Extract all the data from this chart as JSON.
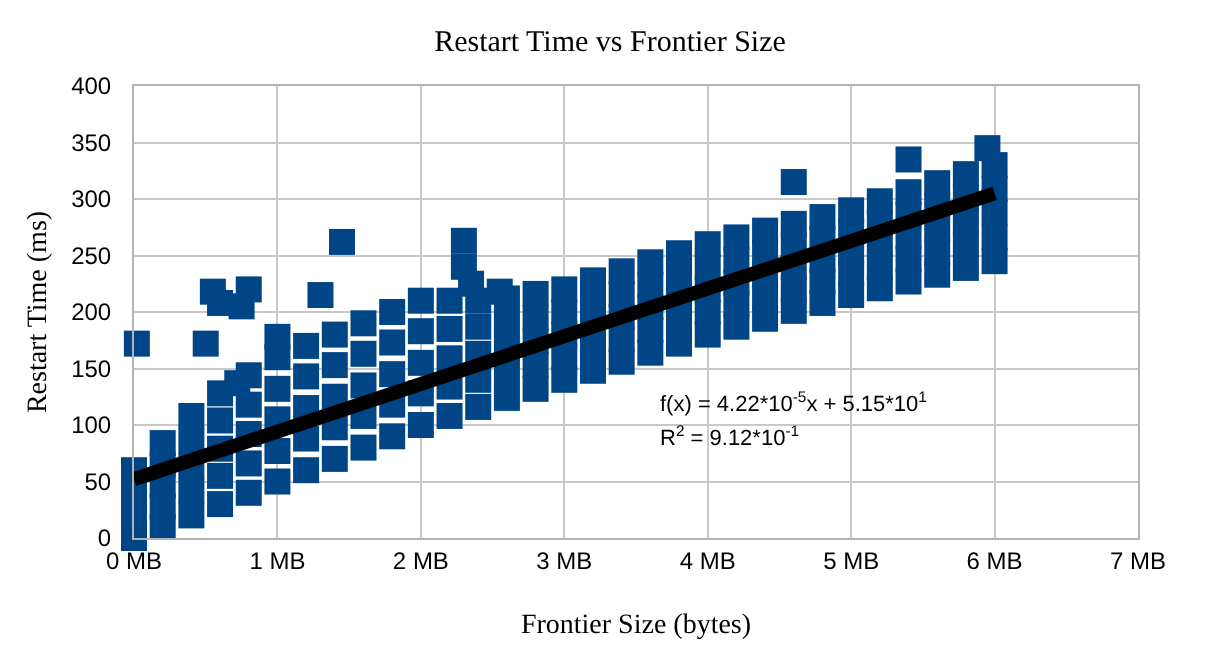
{
  "chart_data": {
    "type": "scatter",
    "title": "Restart Time vs Frontier Size",
    "xlabel": "Frontier Size (bytes)",
    "ylabel": "Restart Time (ms)",
    "xlim": [
      0,
      7
    ],
    "xticks": [
      {
        "value": 0,
        "label": "0 MB"
      },
      {
        "value": 1,
        "label": "1 MB"
      },
      {
        "value": 2,
        "label": "2 MB"
      },
      {
        "value": 3,
        "label": "3 MB"
      },
      {
        "value": 4,
        "label": "4 MB"
      },
      {
        "value": 5,
        "label": "5 MB"
      },
      {
        "value": 6,
        "label": "6 MB"
      },
      {
        "value": 7,
        "label": "7 MB"
      }
    ],
    "ylim": [
      0,
      400
    ],
    "yticks": [
      0,
      50,
      100,
      150,
      200,
      250,
      300,
      350,
      400
    ],
    "grid": true,
    "annotations": [
      "f(x) = 4.22*10$^{-5}$x + 5.15*10$^{1}$",
      "R$^{2}$ = 9.12*10$^{-1}$"
    ],
    "series": [
      {
        "color": "#004586",
        "marker": "square",
        "x": [
          0,
          0,
          0,
          0,
          0,
          0.2,
          0.2,
          0.2,
          0.2,
          0.2,
          0.4,
          0.4,
          0.4,
          0.4,
          0.4,
          0.6,
          0.6,
          0.6,
          0.6,
          0.6,
          0.8,
          0.8,
          0.8,
          0.8,
          0.8,
          1,
          1,
          1,
          1,
          1,
          1.2,
          1.2,
          1.2,
          1.2,
          1.2,
          1.4,
          1.4,
          1.4,
          1.4,
          1.4,
          1.6,
          1.6,
          1.6,
          1.6,
          1.6,
          1.8,
          1.8,
          1.8,
          1.8,
          1.8,
          2,
          2,
          2,
          2,
          2,
          2.2,
          2.2,
          2.2,
          2.2,
          2.2,
          2.4,
          2.4,
          2.4,
          2.4,
          2.4,
          2.6,
          2.6,
          2.6,
          2.6,
          2.6,
          2.8,
          2.8,
          2.8,
          2.8,
          2.8,
          3,
          3,
          3,
          3,
          3,
          3.2,
          3.2,
          3.2,
          3.2,
          3.2,
          3.4,
          3.4,
          3.4,
          3.4,
          3.4,
          3.6,
          3.6,
          3.6,
          3.6,
          3.6,
          3.8,
          3.8,
          3.8,
          3.8,
          3.8,
          4,
          4,
          4,
          4,
          4,
          4.2,
          4.2,
          4.2,
          4.2,
          4.2,
          4.4,
          4.4,
          4.4,
          4.4,
          4.4,
          4.6,
          4.6,
          4.6,
          4.6,
          4.6,
          4.8,
          4.8,
          4.8,
          4.8,
          4.8,
          5,
          5,
          5,
          5,
          5,
          5.2,
          5.2,
          5.2,
          5.2,
          5.2,
          5.4,
          5.4,
          5.4,
          5.4,
          5.4,
          5.6,
          5.6,
          5.6,
          5.6,
          5.6,
          5.8,
          5.8,
          5.8,
          5.8,
          5.8,
          6,
          6,
          6,
          6,
          6,
          0.02,
          0.5,
          0.55,
          0.6,
          0.75,
          0.8,
          1.0,
          1.3,
          1.45,
          2.3,
          2.3,
          2.35,
          0.72,
          4.6,
          5.4,
          5.95,
          2.55
        ],
        "values": [
          0,
          15,
          30,
          45,
          60,
          10,
          28,
          47,
          65,
          84,
          20,
          42,
          64,
          86,
          108,
          30,
          55,
          79,
          104,
          128,
          40,
          66,
          92,
          118,
          144,
          50,
          77,
          105,
          132,
          160,
          60,
          88,
          115,
          143,
          170,
          70,
          98,
          125,
          153,
          180,
          80,
          108,
          135,
          163,
          190,
          90,
          118,
          145,
          173,
          200,
          100,
          128,
          155,
          183,
          210,
          108,
          134,
          159,
          185,
          210,
          116,
          140,
          163,
          187,
          210,
          124,
          146,
          168,
          190,
          212,
          132,
          153,
          174,
          195,
          216,
          140,
          160,
          180,
          200,
          220,
          148,
          168,
          188,
          208,
          228,
          156,
          176,
          196,
          216,
          236,
          164,
          184,
          204,
          224,
          244,
          172,
          192,
          212,
          232,
          252,
          180,
          200,
          220,
          240,
          260,
          187,
          207,
          226,
          246,
          266,
          194,
          214,
          233,
          253,
          272,
          201,
          220,
          240,
          259,
          278,
          208,
          227,
          246,
          265,
          284,
          215,
          234,
          253,
          271,
          290,
          221,
          240,
          260,
          279,
          298,
          227,
          247,
          267,
          286,
          306,
          233,
          253,
          274,
          294,
          314,
          239,
          260,
          281,
          301,
          322,
          245,
          266,
          288,
          309,
          330,
          172,
          172,
          218,
          208,
          205,
          220,
          178,
          215,
          262,
          263,
          240,
          225,
          137,
          315,
          335,
          345,
          218
        ]
      },
      {
        "type": "line",
        "color": "#000000",
        "x": [
          0,
          6
        ],
        "values": [
          52,
          305
        ]
      }
    ]
  }
}
